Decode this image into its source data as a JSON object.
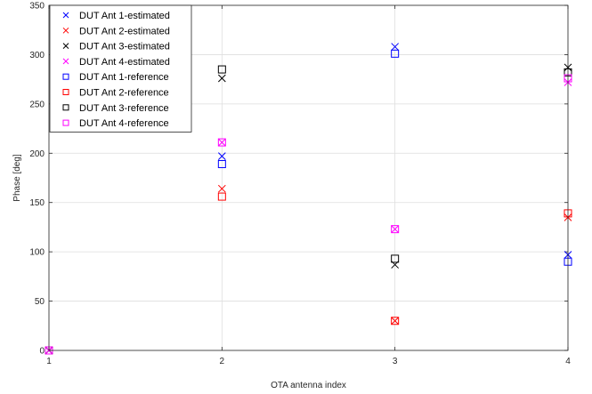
{
  "chart_data": {
    "type": "scatter",
    "title": "",
    "xlabel": "OTA antenna index",
    "ylabel": "Phase [deg]",
    "xlim": [
      1,
      4
    ],
    "ylim": [
      0,
      350
    ],
    "xticks": [
      1,
      2,
      3,
      4
    ],
    "yticks": [
      0,
      50,
      100,
      150,
      200,
      250,
      300,
      350
    ],
    "grid": true,
    "legend_position": "top-left",
    "series": [
      {
        "name": "DUT Ant 1-estimated",
        "marker": "x",
        "color": "#0000ff",
        "x": [
          1,
          2,
          3,
          4
        ],
        "y": [
          0,
          197,
          308,
          97
        ]
      },
      {
        "name": "DUT Ant 2-estimated",
        "marker": "x",
        "color": "#ff0000",
        "x": [
          1,
          2,
          3,
          4
        ],
        "y": [
          0,
          164,
          30,
          135
        ]
      },
      {
        "name": "DUT Ant 3-estimated",
        "marker": "x",
        "color": "#000000",
        "x": [
          1,
          2,
          3,
          4
        ],
        "y": [
          0,
          276,
          87,
          287
        ]
      },
      {
        "name": "DUT Ant 4-estimated",
        "marker": "x",
        "color": "#ff00ff",
        "x": [
          1,
          2,
          3,
          4
        ],
        "y": [
          0,
          211,
          123,
          272
        ]
      },
      {
        "name": "DUT Ant 1-reference",
        "marker": "square",
        "color": "#0000ff",
        "x": [
          1,
          2,
          3,
          4
        ],
        "y": [
          0,
          189,
          301,
          90
        ]
      },
      {
        "name": "DUT Ant 2-reference",
        "marker": "square",
        "color": "#ff0000",
        "x": [
          1,
          2,
          3,
          4
        ],
        "y": [
          0,
          156,
          30,
          139
        ]
      },
      {
        "name": "DUT Ant 3-reference",
        "marker": "square",
        "color": "#000000",
        "x": [
          1,
          2,
          3,
          4
        ],
        "y": [
          0,
          285,
          93,
          282
        ]
      },
      {
        "name": "DUT Ant 4-reference",
        "marker": "square",
        "color": "#ff00ff",
        "x": [
          1,
          2,
          3,
          4
        ],
        "y": [
          0,
          211,
          123,
          276
        ]
      }
    ]
  }
}
